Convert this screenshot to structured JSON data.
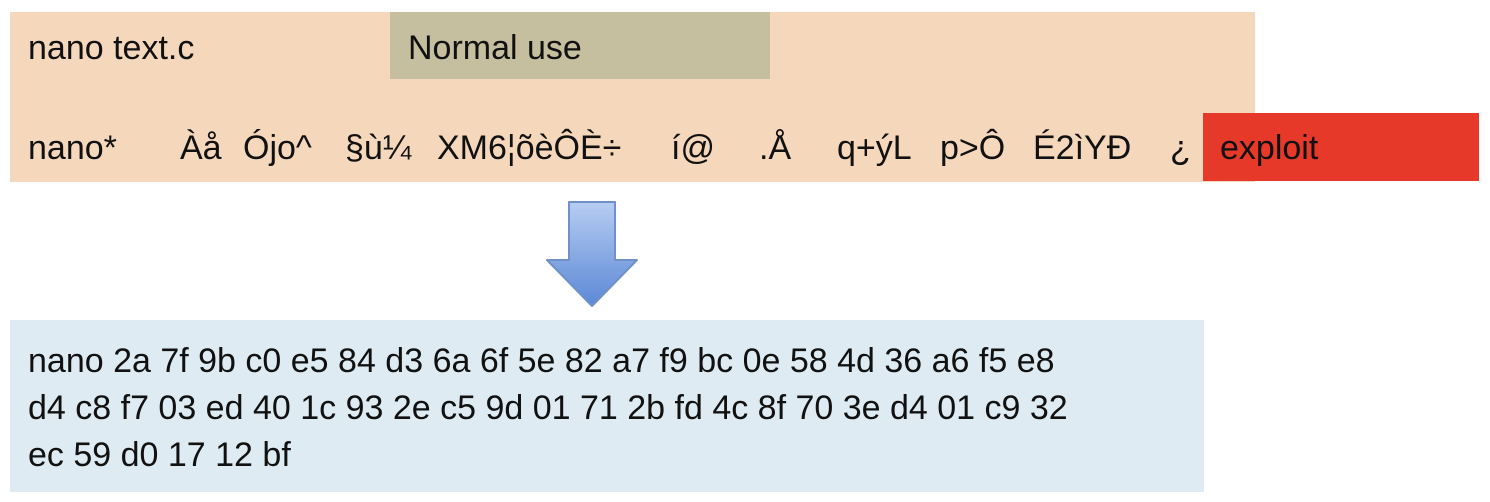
{
  "normal_command": "nano text.c",
  "normal_label": "Normal use",
  "exploit_label": "exploit",
  "payload_tokens": [
    "nano*",
    "Àå",
    "Ójo^",
    "§ù¼",
    "XM6¦õèÔÈ÷",
    "í@",
    ".Å",
    "q+ýL",
    "p>Ô",
    "É2ìYÐ",
    "¿"
  ],
  "hex_lines": [
    "nano 2a 7f 9b c0 e5 84 d3 6a 6f  5e 82 a7 f9 bc 0e 58 4d 36 a6 f5 e8",
    "d4 c8 f7 03 ed 40 1c 93 2e c5 9d 01 71 2b fd 4c 8f 70 3e d4 01 c9 32",
    "ec 59 d0 17 12 bf"
  ],
  "colors": {
    "top_box": "#f5d7bc",
    "normal_use_box": "#c5bf9f",
    "exploit_box": "#e6392a",
    "bottom_box": "#deebf2",
    "arrow_top": "#b7cdf2",
    "arrow_bottom": "#5b88d6"
  }
}
